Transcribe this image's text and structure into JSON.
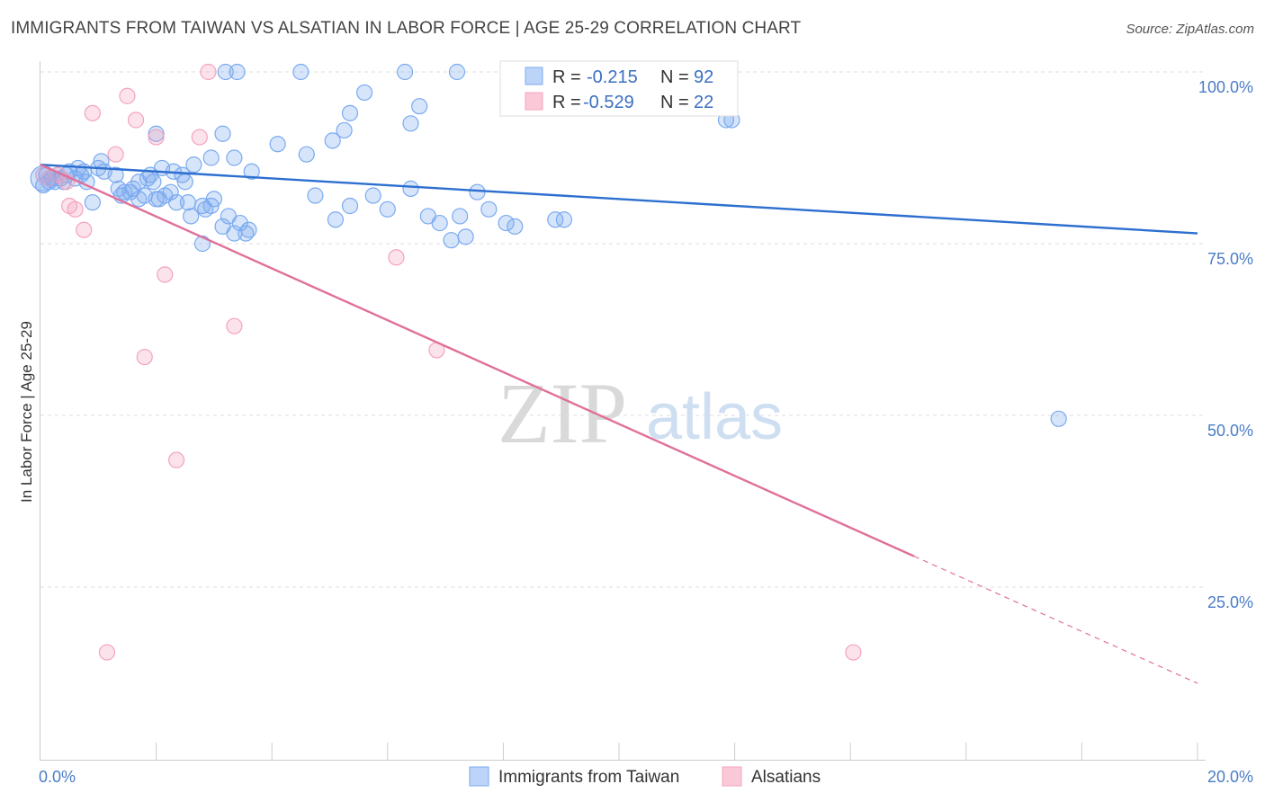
{
  "title": "IMMIGRANTS FROM TAIWAN VS ALSATIAN IN LABOR FORCE | AGE 25-29 CORRELATION CHART",
  "source": "Source: ZipAtlas.com",
  "watermark": {
    "zip": "ZIP",
    "atlas": "atlas"
  },
  "legend": {
    "r_label": "R =",
    "n_label": "N =",
    "entries": [
      {
        "r": "-0.215",
        "n": "92"
      },
      {
        "r": "-0.529",
        "n": "22"
      }
    ]
  },
  "chart_data": {
    "type": "scatter",
    "title": "IMMIGRANTS FROM TAIWAN VS ALSATIAN IN LABOR FORCE | AGE 25-29 CORRELATION CHART",
    "xlabel": "",
    "ylabel": "In Labor Force | Age 25-29",
    "xlim": [
      0,
      20
    ],
    "ylim": [
      0,
      105
    ],
    "x_tick_labels": [
      "0.0%",
      "20.0%"
    ],
    "y_ticks": [
      25,
      50,
      75,
      100
    ],
    "y_tick_labels": [
      "25.0%",
      "50.0%",
      "75.0%",
      "100.0%"
    ],
    "grid": true,
    "legend_position": "top-center",
    "series": [
      {
        "name": "Immigrants from Taiwan",
        "color": "#7aaaf0",
        "trend": {
          "x": [
            0,
            20
          ],
          "y": [
            86.5,
            76.5
          ],
          "color": "#2d6fcf"
        },
        "points": [
          [
            0.05,
            83.5
          ],
          [
            0.1,
            85
          ],
          [
            0.15,
            84
          ],
          [
            0.2,
            84.5
          ],
          [
            0.25,
            84
          ],
          [
            0.3,
            85
          ],
          [
            0.35,
            84.5
          ],
          [
            0.4,
            84
          ],
          [
            0.45,
            85
          ],
          [
            0.5,
            85.5
          ],
          [
            0.6,
            84.5
          ],
          [
            0.65,
            86
          ],
          [
            0.7,
            85
          ],
          [
            0.75,
            85.5
          ],
          [
            0.8,
            84
          ],
          [
            0.9,
            81
          ],
          [
            1.0,
            86
          ],
          [
            1.05,
            87
          ],
          [
            1.1,
            85.5
          ],
          [
            1.3,
            85
          ],
          [
            1.35,
            83
          ],
          [
            1.4,
            82
          ],
          [
            1.45,
            82.5
          ],
          [
            1.55,
            82.5
          ],
          [
            1.6,
            83
          ],
          [
            1.7,
            81.5
          ],
          [
            1.8,
            82
          ],
          [
            1.9,
            85
          ],
          [
            1.95,
            84
          ],
          [
            2.0,
            81.5
          ],
          [
            2.05,
            81.5
          ],
          [
            2.15,
            82
          ],
          [
            2.25,
            82.5
          ],
          [
            2.35,
            81
          ],
          [
            2.45,
            85
          ],
          [
            2.55,
            81
          ],
          [
            2.6,
            79
          ],
          [
            2.8,
            80.5
          ],
          [
            2.85,
            80
          ],
          [
            2.95,
            80.5
          ],
          [
            3.0,
            81.5
          ],
          [
            3.15,
            77.5
          ],
          [
            3.25,
            79
          ],
          [
            3.35,
            76.5
          ],
          [
            3.45,
            78
          ],
          [
            3.55,
            76.5
          ],
          [
            3.6,
            77
          ],
          [
            2.8,
            75
          ],
          [
            1.7,
            84
          ],
          [
            1.85,
            84.5
          ],
          [
            2.1,
            86
          ],
          [
            2.3,
            85.5
          ],
          [
            2.5,
            84
          ],
          [
            2.65,
            86.5
          ],
          [
            2.95,
            87.5
          ],
          [
            3.15,
            91
          ],
          [
            3.35,
            87.5
          ],
          [
            3.65,
            85.5
          ],
          [
            4.1,
            89.5
          ],
          [
            4.6,
            88
          ],
          [
            5.05,
            90
          ],
          [
            5.25,
            91.5
          ],
          [
            5.35,
            94
          ],
          [
            5.6,
            97
          ],
          [
            4.75,
            82
          ],
          [
            5.1,
            78.5
          ],
          [
            5.35,
            80.5
          ],
          [
            5.75,
            82
          ],
          [
            6.0,
            80
          ],
          [
            6.4,
            83
          ],
          [
            6.7,
            79
          ],
          [
            6.9,
            78
          ],
          [
            7.1,
            75.5
          ],
          [
            7.35,
            76
          ],
          [
            7.55,
            82.5
          ],
          [
            7.75,
            80
          ],
          [
            8.05,
            78
          ],
          [
            8.2,
            77.5
          ],
          [
            8.9,
            78.5
          ],
          [
            9.05,
            78.5
          ],
          [
            7.25,
            79
          ],
          [
            6.4,
            92.5
          ],
          [
            6.55,
            95
          ],
          [
            2.0,
            91
          ],
          [
            3.2,
            100
          ],
          [
            3.4,
            100
          ],
          [
            4.5,
            100
          ],
          [
            6.3,
            100
          ],
          [
            7.2,
            100
          ],
          [
            11.85,
            93
          ],
          [
            11.95,
            93
          ],
          [
            17.6,
            49.5
          ]
        ]
      },
      {
        "name": "Alsatians",
        "color": "#f4a3bd",
        "trend": {
          "x": [
            0,
            15.1
          ],
          "y": [
            86.5,
            29.5
          ],
          "dash_x": [
            15.1,
            20
          ],
          "dash_y": [
            29.5,
            11
          ],
          "color": "#e0709a"
        },
        "points": [
          [
            0.05,
            85
          ],
          [
            0.15,
            84.5
          ],
          [
            0.3,
            85
          ],
          [
            0.45,
            84
          ],
          [
            0.5,
            80.5
          ],
          [
            0.6,
            80
          ],
          [
            0.75,
            77
          ],
          [
            0.9,
            94
          ],
          [
            1.3,
            88
          ],
          [
            1.5,
            96.5
          ],
          [
            1.65,
            93
          ],
          [
            1.8,
            58.5
          ],
          [
            2.0,
            90.5
          ],
          [
            2.15,
            70.5
          ],
          [
            2.35,
            43.5
          ],
          [
            2.75,
            90.5
          ],
          [
            2.9,
            100
          ],
          [
            3.35,
            63
          ],
          [
            6.15,
            73
          ],
          [
            6.85,
            59.5
          ],
          [
            1.15,
            15.5
          ],
          [
            14.05,
            15.5
          ]
        ]
      }
    ]
  }
}
